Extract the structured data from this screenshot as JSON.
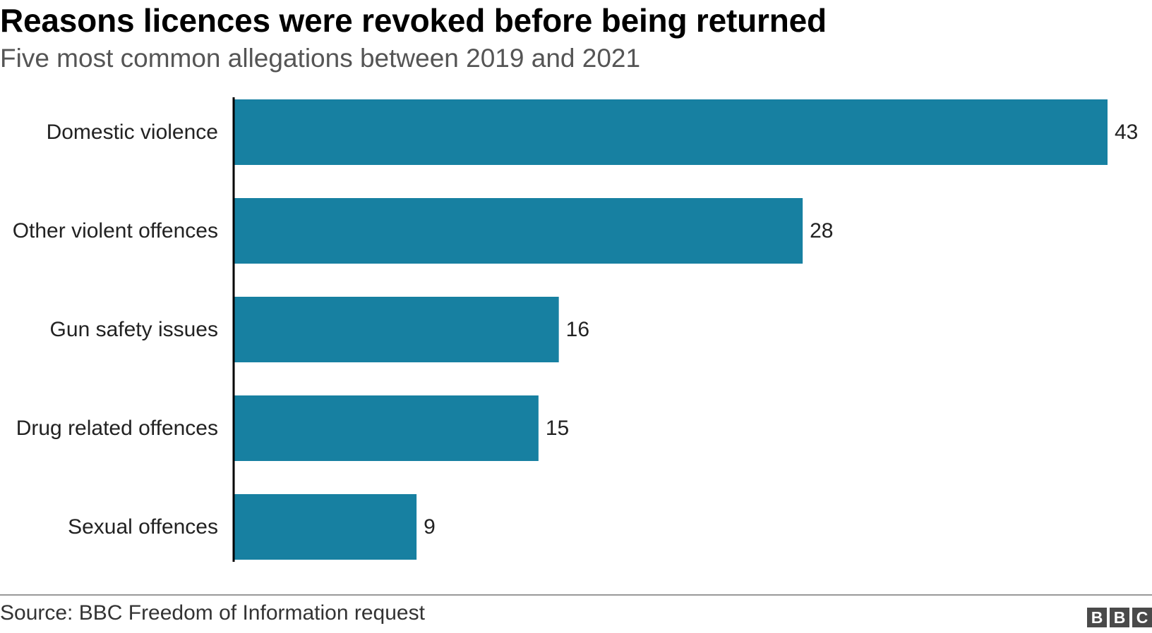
{
  "header": {
    "title": "Reasons licences were revoked before being returned",
    "subtitle": "Five most common allegations between 2019 and 2021"
  },
  "footer": {
    "source": "Source: BBC Freedom of Information request",
    "logo_letters": [
      "B",
      "B",
      "C"
    ]
  },
  "colors": {
    "bar": "#1780a1",
    "axis": "#000000",
    "label": "#222222",
    "logo": "#4a4a4a"
  },
  "chart_data": {
    "type": "bar",
    "orientation": "horizontal",
    "categories": [
      "Domestic violence",
      "Other violent offences",
      "Gun safety issues",
      "Drug related offences",
      "Sexual offences"
    ],
    "values": [
      43,
      28,
      16,
      15,
      9
    ],
    "data_labels": [
      "43",
      "28",
      "16",
      "15",
      "9"
    ],
    "xlim": [
      0,
      43
    ],
    "grid": false,
    "legend": "none"
  }
}
